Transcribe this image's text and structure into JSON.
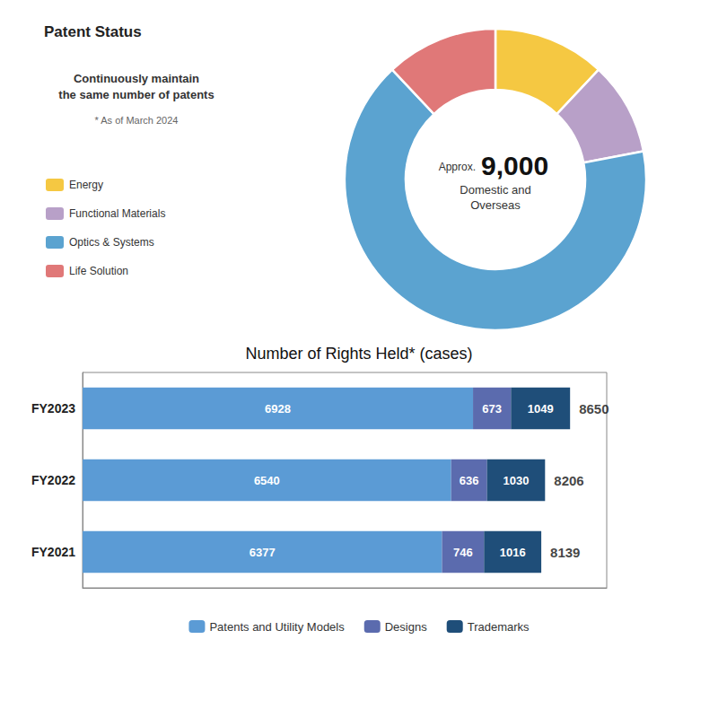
{
  "chart_data": [
    {
      "type": "pie",
      "title": "Patent Status",
      "subtitle": "Continuously maintain\nthe same number of patents",
      "annotations": [
        "* As of March 2024",
        "Approx.",
        "9,000",
        "Domestic and\nOverseas"
      ],
      "categories": [
        "Energy",
        "Functional Materials",
        "Optics & Systems",
        "Life Solution"
      ],
      "values": [
        0.12,
        0.1,
        0.66,
        0.12
      ],
      "colors": [
        "#F5C842",
        "#B8A0C8",
        "#5BA3D0",
        "#E07878"
      ],
      "legend": "left"
    },
    {
      "type": "bar",
      "title": "Number of Rights Held* (cases)",
      "orientation": "horizontal",
      "stacked": true,
      "categories": [
        "FY2023",
        "FY2022",
        "FY2021"
      ],
      "series": [
        {
          "name": "Patents and Utility Models",
          "color": "#5B9BD5",
          "values": [
            6928,
            6540,
            6377
          ]
        },
        {
          "name": "Designs",
          "color": "#5B6BAE",
          "values": [
            673,
            636,
            746
          ]
        },
        {
          "name": "Trademarks",
          "color": "#1F4E79",
          "values": [
            1049,
            1030,
            1016
          ]
        }
      ],
      "totals": [
        8650,
        8206,
        8139
      ],
      "xlim": [
        0,
        9300
      ],
      "tick_labels": "y",
      "grid": false,
      "data_labels": true,
      "legend": "bottom"
    }
  ]
}
